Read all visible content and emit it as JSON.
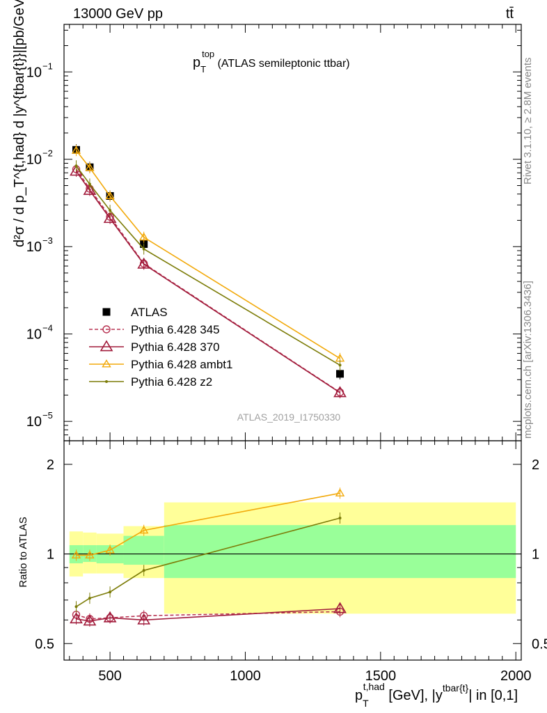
{
  "header": {
    "left": "13000 GeV pp",
    "right": "tt̄"
  },
  "side_labels": {
    "rivet": "Rivet 3.1.10, ≥ 2.8M events",
    "mcplots": "mcplots.cern.ch [arXiv:1306.3436]"
  },
  "chart_data": [
    {
      "type": "line",
      "panel": "main",
      "title_main": "p",
      "title_sub": "T",
      "title_sup": "top",
      "title_rest": " (ATLAS semileptonic ttbar)",
      "ylabel": "d²σ / d p_T^{t,had} d |y^{tbar{t}}|[pb/GeV]",
      "yscale": "log",
      "ylim": [
        6e-06,
        0.35
      ],
      "xlim": [
        330,
        2020
      ],
      "y_ticks": [
        {
          "v": 1e-05,
          "base": "10",
          "exp": "−5"
        },
        {
          "v": 0.0001,
          "base": "10",
          "exp": "−4"
        },
        {
          "v": 0.001,
          "base": "10",
          "exp": "−3"
        },
        {
          "v": 0.01,
          "base": "10",
          "exp": "−2"
        },
        {
          "v": 0.1,
          "base": "10",
          "exp": "−1"
        }
      ],
      "watermark": "ATLAS_2019_I1750330",
      "legend_placement": "bottom-left",
      "series": [
        {
          "name": "ATLAS",
          "style": "data",
          "color": "#000000",
          "x": [
            375,
            425,
            500,
            625,
            1350
          ],
          "y": [
            0.0128,
            0.0081,
            0.0038,
            0.00107,
            3.5e-05
          ]
        },
        {
          "name": "Pythia 6.428 345",
          "style": "circle-dashed",
          "color": "#b83352",
          "x": [
            375,
            425,
            500,
            625,
            1350
          ],
          "y": [
            0.0077,
            0.0046,
            0.0022,
            0.00064,
            2.15e-05
          ]
        },
        {
          "name": "Pythia 6.428 370",
          "style": "triangle",
          "color": "#a01a3a",
          "x": [
            375,
            425,
            500,
            625,
            1350
          ],
          "y": [
            0.0073,
            0.0044,
            0.0021,
            0.00063,
            2.13e-05
          ]
        },
        {
          "name": "Pythia 6.428 ambt1",
          "style": "triangle-small",
          "color": "#f2a90a",
          "x": [
            375,
            425,
            500,
            625,
            1350
          ],
          "y": [
            0.0126,
            0.008,
            0.0038,
            0.00128,
            5.25e-05
          ]
        },
        {
          "name": "Pythia 6.428 z2",
          "style": "dot",
          "color": "#7c7c08",
          "x": [
            375,
            425,
            500,
            625,
            1350
          ],
          "y": [
            0.0084,
            0.0052,
            0.0026,
            0.00094,
            4.4e-05
          ]
        }
      ]
    },
    {
      "type": "line",
      "panel": "ratio",
      "ylabel": "Ratio to ATLAS",
      "xlabel_main": "p",
      "xlabel_sub": "T",
      "xlabel_sup": "t,had",
      "xlabel_rest": " [GeV], |y",
      "xlabel_sup2": "tbar{t}",
      "xlabel_end": "| in [0,1]",
      "yscale": "log",
      "ylim": [
        0.44,
        2.4
      ],
      "xlim": [
        330,
        2020
      ],
      "y_ticks": [
        0.5,
        1,
        2
      ],
      "y_tick_labels": [
        "0.5",
        "1",
        "2"
      ],
      "x_ticks": [
        500,
        1000,
        1500,
        2000
      ],
      "x_tick_labels": [
        "500",
        "1000",
        "1500",
        "2000"
      ],
      "bands": [
        {
          "x0": 350,
          "x1": 400,
          "inner": [
            0.93,
            1.07
          ],
          "outer": [
            0.84,
            1.19
          ]
        },
        {
          "x0": 400,
          "x1": 450,
          "inner": [
            0.94,
            1.07
          ],
          "outer": [
            0.86,
            1.18
          ]
        },
        {
          "x0": 450,
          "x1": 550,
          "inner": [
            0.93,
            1.07
          ],
          "outer": [
            0.86,
            1.17
          ]
        },
        {
          "x0": 550,
          "x1": 700,
          "inner": [
            0.92,
            1.15
          ],
          "outer": [
            0.83,
            1.24
          ]
        },
        {
          "x0": 700,
          "x1": 2000,
          "inner": [
            0.83,
            1.25
          ],
          "outer": [
            0.63,
            1.49
          ]
        }
      ],
      "series": [
        {
          "name": "Pythia 6.428 345",
          "style": "circle-dashed",
          "color": "#b83352",
          "x": [
            375,
            425,
            500,
            625,
            1350
          ],
          "y": [
            0.625,
            0.605,
            0.61,
            0.62,
            0.64
          ]
        },
        {
          "name": "Pythia 6.428 370",
          "style": "triangle",
          "color": "#a01a3a",
          "x": [
            375,
            425,
            500,
            625,
            1350
          ],
          "y": [
            0.605,
            0.595,
            0.61,
            0.6,
            0.655
          ]
        },
        {
          "name": "Pythia 6.428 ambt1",
          "style": "triangle-small",
          "color": "#f2a90a",
          "x": [
            375,
            425,
            500,
            625,
            1350
          ],
          "y": [
            0.99,
            0.99,
            1.03,
            1.2,
            1.6
          ]
        },
        {
          "name": "Pythia 6.428 z2",
          "style": "dot",
          "color": "#7c7c08",
          "x": [
            375,
            425,
            500,
            625,
            1350
          ],
          "y": [
            0.665,
            0.71,
            0.745,
            0.88,
            1.32
          ]
        }
      ]
    }
  ]
}
